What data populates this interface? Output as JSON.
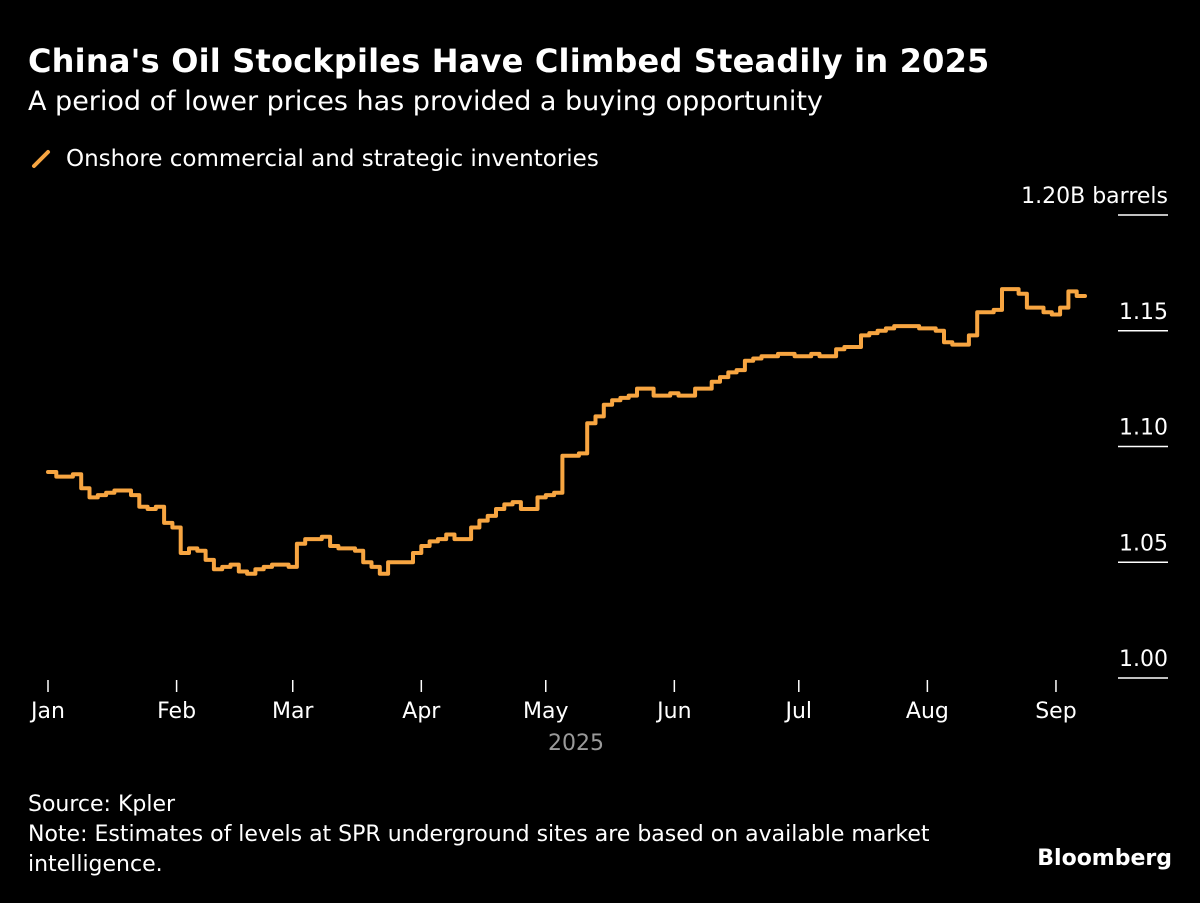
{
  "header": {
    "title": "China's Oil Stockpiles Have Climbed Steadily in 2025",
    "subtitle": "A period of lower prices has provided a buying opportunity"
  },
  "footer": {
    "source": "Source: Kpler",
    "note": "Note: Estimates of levels at SPR underground sites are based on available market intelligence.",
    "brand": "Bloomberg"
  },
  "colors": {
    "line": "#f7a541",
    "background": "#000000",
    "text": "#ffffff",
    "muted": "#9a9a9a"
  },
  "chart_data": {
    "type": "line",
    "title": "China's Oil Stockpiles Have Climbed Steadily in 2025",
    "subtitle": "A period of lower prices has provided a buying opportunity",
    "legend": "top-left",
    "grid": false,
    "ylim": [
      1.0,
      1.2
    ],
    "y_unit_label": "1.20B barrels",
    "y_ticks": [
      "1.00",
      "1.05",
      "1.10",
      "1.15",
      "1.20B barrels"
    ],
    "y_tick_values": [
      1.0,
      1.05,
      1.1,
      1.15,
      1.2
    ],
    "x_ticks": [
      "Jan",
      "Feb",
      "Mar",
      "Apr",
      "May",
      "Jun",
      "Jul",
      "Aug",
      "Sep"
    ],
    "x_tick_dates": [
      "2025-01-01",
      "2025-02-01",
      "2025-03-01",
      "2025-04-01",
      "2025-05-01",
      "2025-06-01",
      "2025-07-01",
      "2025-08-01",
      "2025-09-01"
    ],
    "xlabel": "2025",
    "xlim": [
      "2025-01-01",
      "2025-09-08"
    ],
    "series": [
      {
        "name": "Onshore commercial and strategic inventories",
        "x": [
          "2025-01-01",
          "2025-01-03",
          "2025-01-05",
          "2025-01-07",
          "2025-01-09",
          "2025-01-11",
          "2025-01-13",
          "2025-01-15",
          "2025-01-17",
          "2025-01-19",
          "2025-01-21",
          "2025-01-23",
          "2025-01-25",
          "2025-01-27",
          "2025-01-29",
          "2025-01-31",
          "2025-02-02",
          "2025-02-04",
          "2025-02-06",
          "2025-02-08",
          "2025-02-10",
          "2025-02-12",
          "2025-02-14",
          "2025-02-16",
          "2025-02-18",
          "2025-02-20",
          "2025-02-22",
          "2025-02-24",
          "2025-02-26",
          "2025-02-28",
          "2025-03-02",
          "2025-03-04",
          "2025-03-06",
          "2025-03-08",
          "2025-03-10",
          "2025-03-12",
          "2025-03-14",
          "2025-03-16",
          "2025-03-18",
          "2025-03-20",
          "2025-03-22",
          "2025-03-24",
          "2025-03-26",
          "2025-03-28",
          "2025-03-30",
          "2025-04-01",
          "2025-04-03",
          "2025-04-05",
          "2025-04-07",
          "2025-04-09",
          "2025-04-11",
          "2025-04-13",
          "2025-04-15",
          "2025-04-17",
          "2025-04-19",
          "2025-04-21",
          "2025-04-23",
          "2025-04-25",
          "2025-04-27",
          "2025-04-29",
          "2025-05-01",
          "2025-05-03",
          "2025-05-05",
          "2025-05-07",
          "2025-05-09",
          "2025-05-11",
          "2025-05-13",
          "2025-05-15",
          "2025-05-17",
          "2025-05-19",
          "2025-05-21",
          "2025-05-23",
          "2025-05-25",
          "2025-05-27",
          "2025-05-29",
          "2025-05-31",
          "2025-06-02",
          "2025-06-04",
          "2025-06-06",
          "2025-06-08",
          "2025-06-10",
          "2025-06-12",
          "2025-06-14",
          "2025-06-16",
          "2025-06-18",
          "2025-06-20",
          "2025-06-22",
          "2025-06-24",
          "2025-06-26",
          "2025-06-28",
          "2025-06-30",
          "2025-07-02",
          "2025-07-04",
          "2025-07-06",
          "2025-07-08",
          "2025-07-10",
          "2025-07-12",
          "2025-07-14",
          "2025-07-16",
          "2025-07-18",
          "2025-07-20",
          "2025-07-22",
          "2025-07-24",
          "2025-07-26",
          "2025-07-28",
          "2025-07-30",
          "2025-08-01",
          "2025-08-03",
          "2025-08-05",
          "2025-08-07",
          "2025-08-09",
          "2025-08-11",
          "2025-08-13",
          "2025-08-15",
          "2025-08-17",
          "2025-08-19",
          "2025-08-21",
          "2025-08-23",
          "2025-08-25",
          "2025-08-27",
          "2025-08-29",
          "2025-08-31",
          "2025-09-02",
          "2025-09-04",
          "2025-09-06",
          "2025-09-08"
        ],
        "y": [
          1.089,
          1.087,
          1.087,
          1.088,
          1.082,
          1.078,
          1.079,
          1.08,
          1.081,
          1.081,
          1.079,
          1.074,
          1.073,
          1.074,
          1.067,
          1.065,
          1.054,
          1.056,
          1.055,
          1.051,
          1.047,
          1.048,
          1.049,
          1.046,
          1.045,
          1.047,
          1.048,
          1.049,
          1.049,
          1.048,
          1.058,
          1.06,
          1.06,
          1.061,
          1.057,
          1.056,
          1.056,
          1.055,
          1.05,
          1.048,
          1.045,
          1.05,
          1.05,
          1.05,
          1.054,
          1.057,
          1.059,
          1.06,
          1.062,
          1.06,
          1.06,
          1.065,
          1.068,
          1.07,
          1.073,
          1.075,
          1.076,
          1.073,
          1.073,
          1.078,
          1.079,
          1.08,
          1.096,
          1.096,
          1.097,
          1.11,
          1.113,
          1.118,
          1.12,
          1.121,
          1.122,
          1.125,
          1.125,
          1.122,
          1.122,
          1.123,
          1.122,
          1.122,
          1.125,
          1.125,
          1.128,
          1.13,
          1.132,
          1.133,
          1.137,
          1.138,
          1.139,
          1.139,
          1.14,
          1.14,
          1.139,
          1.139,
          1.14,
          1.139,
          1.139,
          1.142,
          1.143,
          1.143,
          1.148,
          1.149,
          1.15,
          1.151,
          1.152,
          1.152,
          1.152,
          1.151,
          1.151,
          1.15,
          1.145,
          1.144,
          1.144,
          1.148,
          1.158,
          1.158,
          1.159,
          1.168,
          1.168,
          1.166,
          1.16,
          1.16,
          1.158,
          1.157,
          1.16,
          1.167,
          1.165,
          1.165
        ]
      }
    ]
  }
}
